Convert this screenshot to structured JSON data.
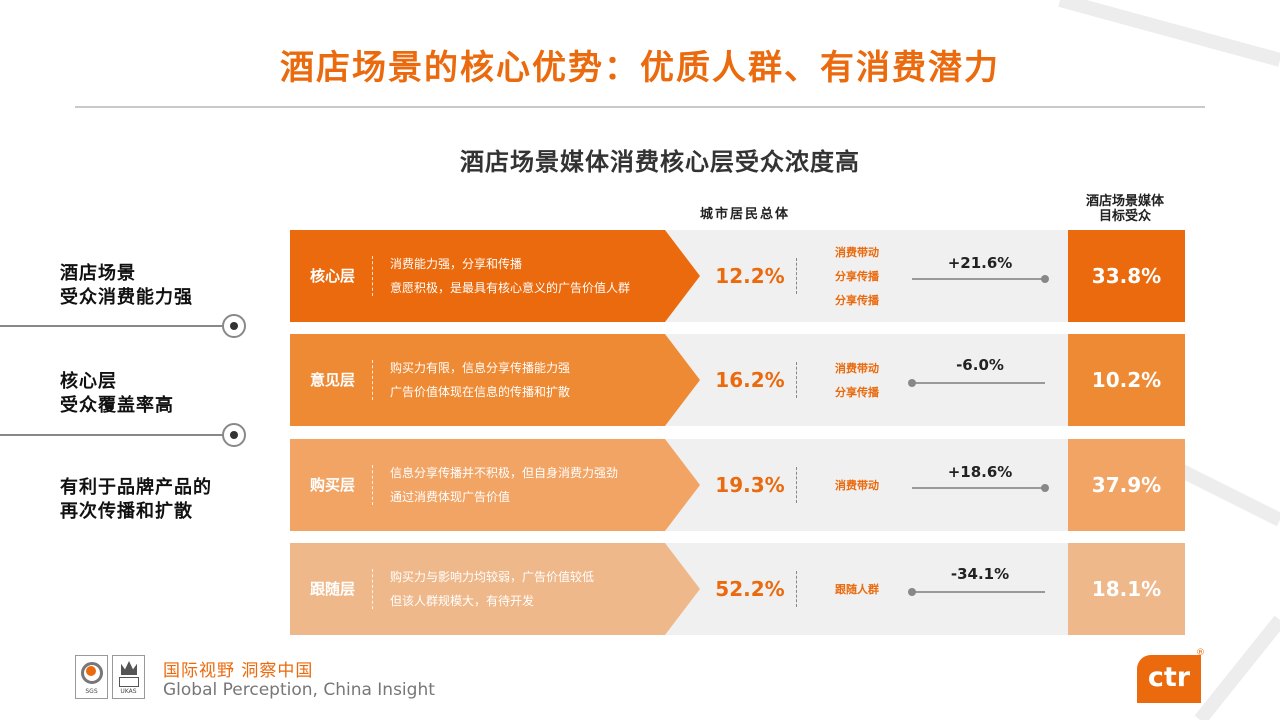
{
  "title": "酒店场景的核心优势：优质人群、有消费潜力",
  "subtitle": "酒店场景媒体消费核心层受众浓度高",
  "columns": {
    "city": "城市居民总体",
    "hotel_line1": "酒店场景媒体",
    "hotel_line2": "目标受众"
  },
  "left_labels": [
    {
      "line1": "酒店场景",
      "line2": "受众消费能力强"
    },
    {
      "line1": "核心层",
      "line2": "受众覆盖率高"
    },
    {
      "line1": "有利于品牌产品的",
      "line2": "再次传播和扩散"
    }
  ],
  "rows": [
    {
      "name": "核心层",
      "desc1": "消费能力强，分享和传播",
      "desc2": "意愿积极，是最具有核心意义的广告价值人群",
      "city_value": "12.2%",
      "tags": [
        "消费带动",
        "分享传播",
        "分享传播"
      ],
      "diff": "+21.6%",
      "hotel_value": "33.8%",
      "seg_color": "#ea6a0d",
      "hotel_color": "#ea6a0d",
      "direction": "up"
    },
    {
      "name": "意见层",
      "desc1": "购买力有限，信息分享传播能力强",
      "desc2": "广告价值体现在信息的传播和扩散",
      "city_value": "16.2%",
      "tags": [
        "消费带动",
        "分享传播"
      ],
      "diff": "-6.0%",
      "hotel_value": "10.2%",
      "seg_color": "#ef8a34",
      "hotel_color": "#ef8a34",
      "direction": "down"
    },
    {
      "name": "购买层",
      "desc1": "信息分享传播并不积极，但自身消费力强劲",
      "desc2": "通过消费体现广告价值",
      "city_value": "19.3%",
      "tags": [
        "消费带动"
      ],
      "diff": "+18.6%",
      "hotel_value": "37.9%",
      "seg_color": "#f2a465",
      "hotel_color": "#f2a465",
      "direction": "up"
    },
    {
      "name": "跟随层",
      "desc1": "购买力与影响力均较弱，广告价值较低",
      "desc2": "但该人群规模大，有待开发",
      "city_value": "52.2%",
      "tags": [
        "跟随人群"
      ],
      "diff": "-34.1%",
      "hotel_value": "18.1%",
      "seg_color": "#efb88a",
      "hotel_color": "#efb88a",
      "direction": "down"
    }
  ],
  "footer": {
    "slogan_cn": "国际视野  洞察中国",
    "slogan_en": "Global Perception,  China Insight",
    "badge1_text": "SGS",
    "badge2_text": "UKAS",
    "logo_text": "ctr",
    "logo_reg": "®"
  }
}
